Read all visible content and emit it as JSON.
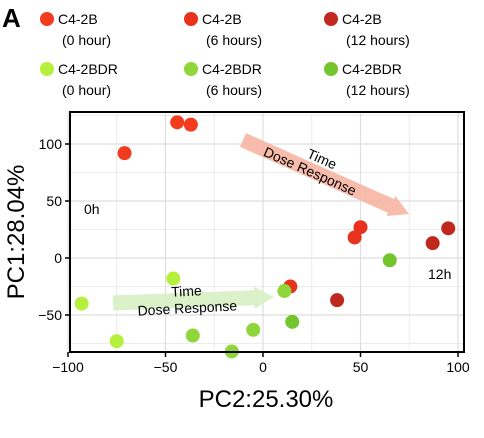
{
  "panel_label": "A",
  "colors": {
    "c42b_0h": "#f23b1f",
    "c42b_6h": "#e8321b",
    "c42b_12h": "#c0281e",
    "c42bdr_0h": "#b5f03c",
    "c42bdr_6h": "#8fd63a",
    "c42bdr_12h": "#74c42e",
    "red_arrow": "#f6b5a2",
    "green_arrow": "#d6f0c4"
  },
  "chart_data": {
    "type": "scatter",
    "xlabel": "PC2:25.30%",
    "ylabel": "PC1:28.04%",
    "xlim": [
      -105,
      103
    ],
    "ylim": [
      -82,
      130
    ],
    "xticks": [
      -100,
      -50,
      0,
      50,
      100
    ],
    "yticks": [
      -50,
      0,
      50,
      100
    ],
    "xtick_labels": [
      "−100",
      "−50",
      "0",
      "50",
      "100"
    ],
    "ytick_labels": [
      "−50",
      "0",
      "50",
      "100"
    ],
    "grid": true,
    "legend_position": "top",
    "series": [
      {
        "name": "C4-2B\n(0 hour)",
        "color_key": "c42b_0h",
        "points": [
          [
            -71,
            92
          ],
          [
            -44,
            119
          ],
          [
            -37,
            117
          ]
        ]
      },
      {
        "name": "C4-2B\n(6 hours)",
        "color_key": "c42b_6h",
        "points": [
          [
            50,
            27
          ],
          [
            47,
            18
          ],
          [
            14,
            -25
          ]
        ]
      },
      {
        "name": "C4-2B\n(12 hours)",
        "color_key": "c42b_12h",
        "points": [
          [
            95,
            26
          ],
          [
            87,
            13
          ],
          [
            38,
            -37
          ]
        ]
      },
      {
        "name": "C4-2BDR\n(0 hour)",
        "color_key": "c42bdr_0h",
        "points": [
          [
            -93,
            -40
          ],
          [
            -46,
            -18
          ],
          [
            -75,
            -73
          ]
        ]
      },
      {
        "name": "C4-2BDR\n(6 hours)",
        "color_key": "c42bdr_6h",
        "points": [
          [
            -36,
            -68
          ],
          [
            -5,
            -63
          ],
          [
            -16,
            -82
          ],
          [
            11,
            -29
          ]
        ]
      },
      {
        "name": "C4-2BDR\n(12 hours)",
        "color_key": "c42bdr_12h",
        "points": [
          [
            65,
            -2
          ],
          [
            15,
            -56
          ]
        ]
      }
    ],
    "annotations": {
      "label_0h": "0h",
      "label_12h": "12h",
      "red_arrow_text": [
        "Time",
        "Dose Response"
      ],
      "green_arrow_text": [
        "Time",
        "Dose Response"
      ]
    }
  }
}
